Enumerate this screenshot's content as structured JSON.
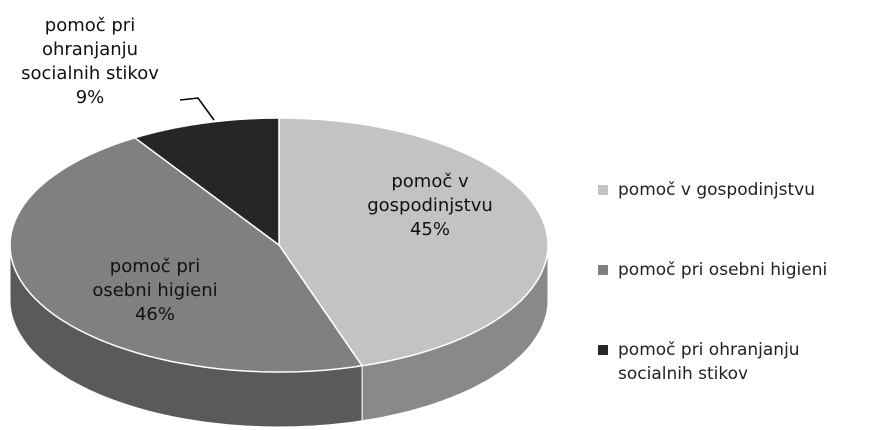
{
  "chart_data": {
    "type": "pie",
    "categories": [
      "pomoč v gospodinjstvu",
      "pomoč pri osebni higieni",
      "pomoč pri ohranjanju socialnih stikov"
    ],
    "values": [
      45,
      46,
      9
    ],
    "value_labels": [
      "45%",
      "46%",
      "9%"
    ],
    "colors": [
      "#c3c3c3",
      "#808080",
      "#262626"
    ],
    "style": "3d",
    "legend": "right"
  }
}
